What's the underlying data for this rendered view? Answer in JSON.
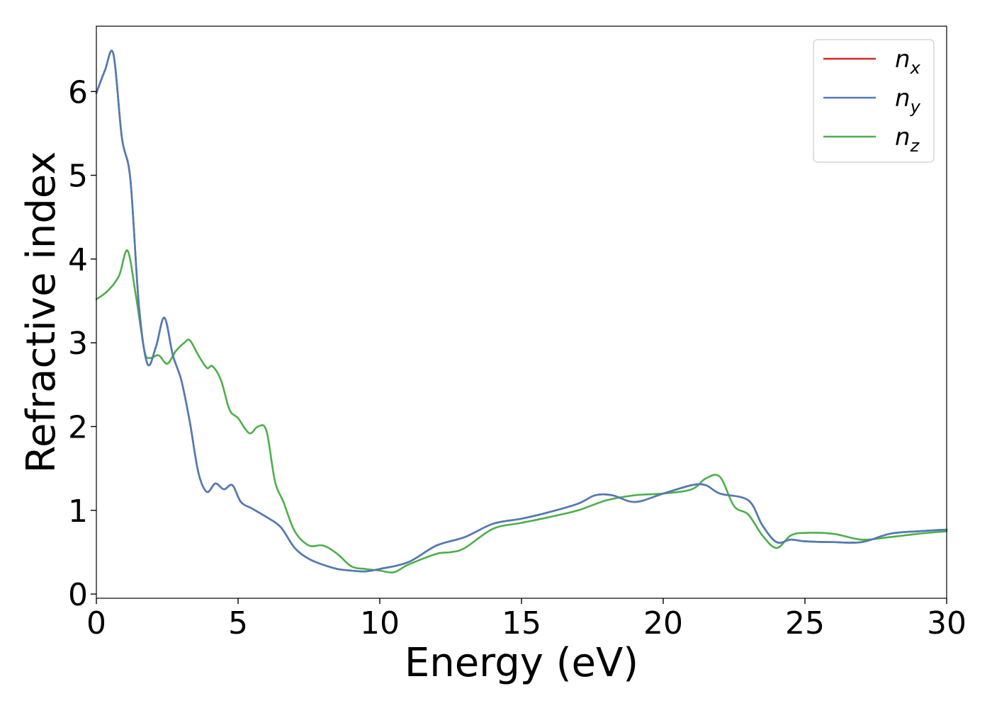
{
  "chart_data": {
    "type": "line",
    "xlabel": "Energy (eV)",
    "ylabel": "Refractive index",
    "xlim": [
      0,
      30
    ],
    "ylim": [
      -0.05,
      6.78
    ],
    "xticks": [
      0,
      5,
      10,
      15,
      20,
      25,
      30
    ],
    "yticks": [
      0,
      1,
      2,
      3,
      4,
      5,
      6
    ],
    "grid": false,
    "legend_position": "top-right",
    "series": [
      {
        "key": "nx",
        "name_base": "n",
        "name_sub": "x",
        "color": "#d62728",
        "x": [
          0,
          0.3,
          0.6,
          0.9,
          1.2,
          1.5,
          1.8,
          2.1,
          2.4,
          2.7,
          3.0,
          3.3,
          3.6,
          3.9,
          4.2,
          4.5,
          4.8,
          5.1,
          5.5,
          6.0,
          6.5,
          7.0,
          7.5,
          8.0,
          8.5,
          9.0,
          9.5,
          10.0,
          11.0,
          12.0,
          13.0,
          14.0,
          15.0,
          16.0,
          17.0,
          17.6,
          18.2,
          19.0,
          20.0,
          21.0,
          21.5,
          22.0,
          23.0,
          23.5,
          24.0,
          24.5,
          25.0,
          26.0,
          27.0,
          28.0,
          29.0,
          30.0
        ],
        "y": [
          5.98,
          6.25,
          6.45,
          5.45,
          4.95,
          3.45,
          2.75,
          2.95,
          3.3,
          2.85,
          2.55,
          2.05,
          1.45,
          1.22,
          1.32,
          1.25,
          1.3,
          1.1,
          1.02,
          0.92,
          0.8,
          0.55,
          0.42,
          0.35,
          0.3,
          0.28,
          0.27,
          0.3,
          0.38,
          0.58,
          0.68,
          0.84,
          0.9,
          0.98,
          1.08,
          1.18,
          1.18,
          1.1,
          1.2,
          1.3,
          1.3,
          1.2,
          1.12,
          0.82,
          0.62,
          0.65,
          0.63,
          0.62,
          0.62,
          0.72,
          0.75,
          0.77
        ]
      },
      {
        "key": "ny",
        "name_base": "n",
        "name_sub": "y",
        "color": "#4e7db8",
        "x": [
          0,
          0.3,
          0.6,
          0.9,
          1.2,
          1.5,
          1.8,
          2.1,
          2.4,
          2.7,
          3.0,
          3.3,
          3.6,
          3.9,
          4.2,
          4.5,
          4.8,
          5.1,
          5.5,
          6.0,
          6.5,
          7.0,
          7.5,
          8.0,
          8.5,
          9.0,
          9.5,
          10.0,
          11.0,
          12.0,
          13.0,
          14.0,
          15.0,
          16.0,
          17.0,
          17.6,
          18.2,
          19.0,
          20.0,
          21.0,
          21.5,
          22.0,
          23.0,
          23.5,
          24.0,
          24.5,
          25.0,
          26.0,
          27.0,
          28.0,
          29.0,
          30.0
        ],
        "y": [
          5.98,
          6.25,
          6.45,
          5.45,
          4.95,
          3.45,
          2.75,
          2.95,
          3.3,
          2.85,
          2.55,
          2.05,
          1.45,
          1.22,
          1.32,
          1.25,
          1.3,
          1.1,
          1.02,
          0.92,
          0.8,
          0.55,
          0.42,
          0.35,
          0.3,
          0.28,
          0.27,
          0.3,
          0.38,
          0.58,
          0.68,
          0.84,
          0.9,
          0.98,
          1.08,
          1.18,
          1.18,
          1.1,
          1.2,
          1.3,
          1.3,
          1.2,
          1.12,
          0.82,
          0.62,
          0.65,
          0.63,
          0.62,
          0.62,
          0.72,
          0.75,
          0.77
        ]
      },
      {
        "key": "nz",
        "name_base": "n",
        "name_sub": "z",
        "color": "#4daf4a",
        "x": [
          0,
          0.4,
          0.8,
          1.1,
          1.4,
          1.7,
          1.9,
          2.2,
          2.5,
          2.8,
          3.1,
          3.3,
          3.6,
          3.9,
          4.1,
          4.4,
          4.7,
          5.0,
          5.4,
          5.7,
          6.0,
          6.3,
          6.6,
          7.0,
          7.5,
          8.0,
          8.5,
          9.0,
          9.5,
          10.0,
          10.5,
          11.0,
          12.0,
          12.5,
          13.0,
          14.0,
          15.0,
          16.0,
          17.0,
          18.0,
          19.0,
          20.0,
          21.0,
          21.5,
          22.0,
          22.5,
          23.0,
          23.5,
          24.0,
          24.5,
          25.0,
          26.0,
          27.0,
          28.0,
          29.0,
          30.0
        ],
        "y": [
          3.52,
          3.62,
          3.8,
          4.1,
          3.55,
          2.9,
          2.82,
          2.85,
          2.75,
          2.9,
          3.0,
          3.03,
          2.85,
          2.7,
          2.72,
          2.55,
          2.2,
          2.1,
          1.92,
          2.0,
          1.95,
          1.35,
          1.1,
          0.75,
          0.58,
          0.58,
          0.48,
          0.33,
          0.3,
          0.28,
          0.26,
          0.35,
          0.48,
          0.5,
          0.55,
          0.78,
          0.85,
          0.92,
          1.0,
          1.12,
          1.18,
          1.2,
          1.25,
          1.38,
          1.4,
          1.05,
          0.95,
          0.7,
          0.55,
          0.7,
          0.73,
          0.72,
          0.65,
          0.68,
          0.72,
          0.75
        ]
      }
    ]
  }
}
